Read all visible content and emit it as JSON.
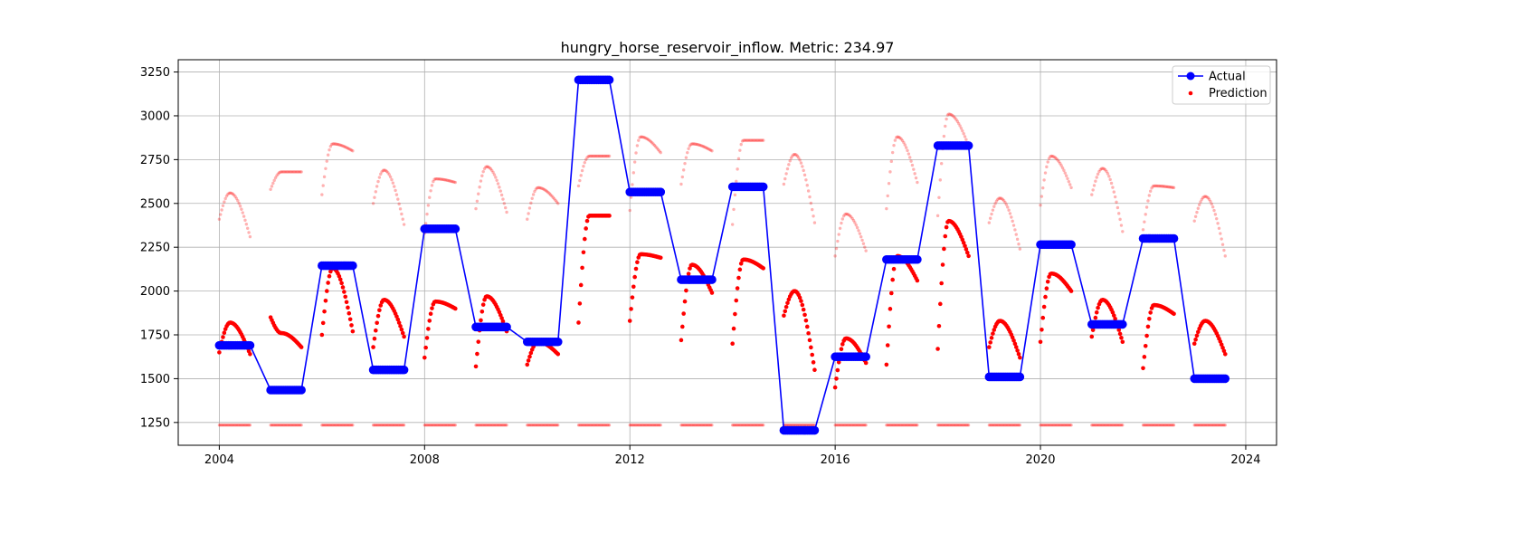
{
  "chart_data": {
    "type": "scatter",
    "title": "hungry_horse_reservoir_inflow. Metric: 234.97",
    "xlabel": "",
    "ylabel": "",
    "xlim": [
      2003.2,
      2024.6
    ],
    "ylim": [
      1120,
      3320
    ],
    "grid": true,
    "legend_position": "top-right",
    "x_ticks": [
      2004,
      2008,
      2012,
      2016,
      2020,
      2024
    ],
    "x_tick_labels": [
      "2004",
      "2008",
      "2012",
      "2016",
      "2020",
      "2024"
    ],
    "y_ticks": [
      1250,
      1500,
      1750,
      2000,
      2250,
      2500,
      2750,
      3000,
      3250
    ],
    "y_tick_labels": [
      "1250",
      "1500",
      "1750",
      "2000",
      "2250",
      "2500",
      "2750",
      "3000",
      "3250"
    ],
    "actual": {
      "name": "Actual",
      "color": "#0000ff",
      "years": [
        2004,
        2005,
        2006,
        2007,
        2008,
        2009,
        2010,
        2011,
        2012,
        2013,
        2014,
        2015,
        2016,
        2017,
        2018,
        2019,
        2020,
        2021,
        2022,
        2023
      ],
      "values": [
        1690,
        1435,
        2145,
        1550,
        2355,
        1795,
        1710,
        3205,
        2565,
        2065,
        2595,
        1205,
        1625,
        2180,
        2830,
        1510,
        2265,
        1810,
        2300,
        1500
      ],
      "season_start_offset": 0.0,
      "season_end_offset": 0.6
    },
    "prediction": {
      "name": "Prediction",
      "color": "#ff0000",
      "season_start_offset": 0.0,
      "season_end_offset": 0.6,
      "main": [
        {
          "year": 2004,
          "start": 1650,
          "peak": 1820,
          "end": 1640
        },
        {
          "year": 2005,
          "start": 1850,
          "peak": 1760,
          "end": 1680
        },
        {
          "year": 2006,
          "start": 1750,
          "peak": 2130,
          "end": 1770
        },
        {
          "year": 2007,
          "start": 1680,
          "peak": 1950,
          "end": 1740
        },
        {
          "year": 2008,
          "start": 1620,
          "peak": 1940,
          "end": 1900
        },
        {
          "year": 2009,
          "start": 1570,
          "peak": 1970,
          "end": 1770
        },
        {
          "year": 2010,
          "start": 1580,
          "peak": 1710,
          "end": 1640
        },
        {
          "year": 2011,
          "start": 1820,
          "peak": 2430,
          "end": 2430
        },
        {
          "year": 2012,
          "start": 1830,
          "peak": 2210,
          "end": 2190
        },
        {
          "year": 2013,
          "start": 1720,
          "peak": 2150,
          "end": 1990
        },
        {
          "year": 2014,
          "start": 1700,
          "peak": 2180,
          "end": 2130
        },
        {
          "year": 2015,
          "start": 1860,
          "peak": 2000,
          "end": 1550
        },
        {
          "year": 2016,
          "start": 1450,
          "peak": 1730,
          "end": 1590
        },
        {
          "year": 2017,
          "start": 1580,
          "peak": 2200,
          "end": 2060
        },
        {
          "year": 2018,
          "start": 1670,
          "peak": 2400,
          "end": 2200
        },
        {
          "year": 2019,
          "start": 1680,
          "peak": 1830,
          "end": 1620
        },
        {
          "year": 2020,
          "start": 1710,
          "peak": 2100,
          "end": 2000
        },
        {
          "year": 2021,
          "start": 1740,
          "peak": 1950,
          "end": 1710
        },
        {
          "year": 2022,
          "start": 1560,
          "peak": 1920,
          "end": 1870
        },
        {
          "year": 2023,
          "start": 1700,
          "peak": 1830,
          "end": 1640
        }
      ],
      "faint_upper": [
        {
          "year": 2004,
          "start": 2410,
          "peak": 2560,
          "end": 2310
        },
        {
          "year": 2005,
          "start": 2580,
          "peak": 2680,
          "end": 2680
        },
        {
          "year": 2006,
          "start": 2550,
          "peak": 2840,
          "end": 2800
        },
        {
          "year": 2007,
          "start": 2500,
          "peak": 2690,
          "end": 2380
        },
        {
          "year": 2008,
          "start": 2330,
          "peak": 2640,
          "end": 2620
        },
        {
          "year": 2009,
          "start": 2470,
          "peak": 2710,
          "end": 2450
        },
        {
          "year": 2010,
          "start": 2410,
          "peak": 2590,
          "end": 2500
        },
        {
          "year": 2011,
          "start": 2600,
          "peak": 2770,
          "end": 2770
        },
        {
          "year": 2012,
          "start": 2460,
          "peak": 2880,
          "end": 2790
        },
        {
          "year": 2013,
          "start": 2610,
          "peak": 2840,
          "end": 2800
        },
        {
          "year": 2014,
          "start": 2380,
          "peak": 2860,
          "end": 2860
        },
        {
          "year": 2015,
          "start": 2610,
          "peak": 2780,
          "end": 2390
        },
        {
          "year": 2016,
          "start": 2200,
          "peak": 2440,
          "end": 2230
        },
        {
          "year": 2017,
          "start": 2470,
          "peak": 2880,
          "end": 2620
        },
        {
          "year": 2018,
          "start": 2430,
          "peak": 3010,
          "end": 2830
        },
        {
          "year": 2019,
          "start": 2390,
          "peak": 2530,
          "end": 2240
        },
        {
          "year": 2020,
          "start": 2490,
          "peak": 2770,
          "end": 2590
        },
        {
          "year": 2021,
          "start": 2550,
          "peak": 2700,
          "end": 2340
        },
        {
          "year": 2022,
          "start": 2350,
          "peak": 2600,
          "end": 2590
        },
        {
          "year": 2023,
          "start": 2400,
          "peak": 2540,
          "end": 2200
        }
      ],
      "faint_lower_value": 1235
    },
    "legend": [
      {
        "label": "Actual",
        "marker": "line-circle",
        "color": "#0000ff"
      },
      {
        "label": "Prediction",
        "marker": "dot",
        "color": "#ff0000"
      }
    ]
  }
}
